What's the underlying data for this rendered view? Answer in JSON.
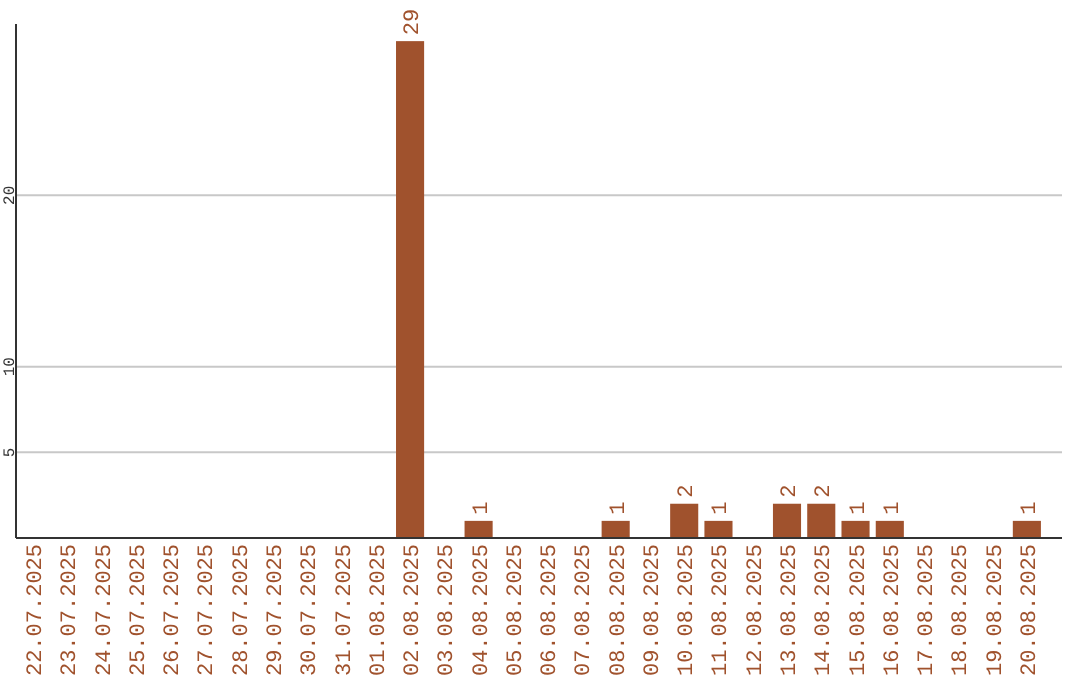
{
  "chart_data": {
    "type": "bar",
    "categories": [
      "22.07.2025",
      "23.07.2025",
      "24.07.2025",
      "25.07.2025",
      "26.07.2025",
      "27.07.2025",
      "28.07.2025",
      "29.07.2025",
      "30.07.2025",
      "31.07.2025",
      "01.08.2025",
      "02.08.2025",
      "03.08.2025",
      "04.08.2025",
      "05.08.2025",
      "06.08.2025",
      "07.08.2025",
      "08.08.2025",
      "09.08.2025",
      "10.08.2025",
      "11.08.2025",
      "12.08.2025",
      "13.08.2025",
      "14.08.2025",
      "15.08.2025",
      "16.08.2025",
      "17.08.2025",
      "18.08.2025",
      "19.08.2025",
      "20.08.2025"
    ],
    "values": [
      0,
      0,
      0,
      0,
      0,
      0,
      0,
      0,
      0,
      0,
      0,
      29,
      0,
      1,
      0,
      0,
      0,
      1,
      0,
      2,
      1,
      0,
      2,
      2,
      1,
      1,
      0,
      0,
      0,
      1
    ],
    "value_labels": [
      null,
      null,
      null,
      null,
      null,
      null,
      null,
      null,
      null,
      null,
      null,
      "29",
      null,
      "1",
      null,
      null,
      null,
      "1",
      null,
      "2",
      "1",
      null,
      "2",
      "2",
      "1",
      "1",
      null,
      null,
      null,
      "1"
    ],
    "color": "#a0522d",
    "ylim": [
      0,
      30
    ],
    "yticks": [
      5,
      10,
      20
    ],
    "grid": "y"
  }
}
